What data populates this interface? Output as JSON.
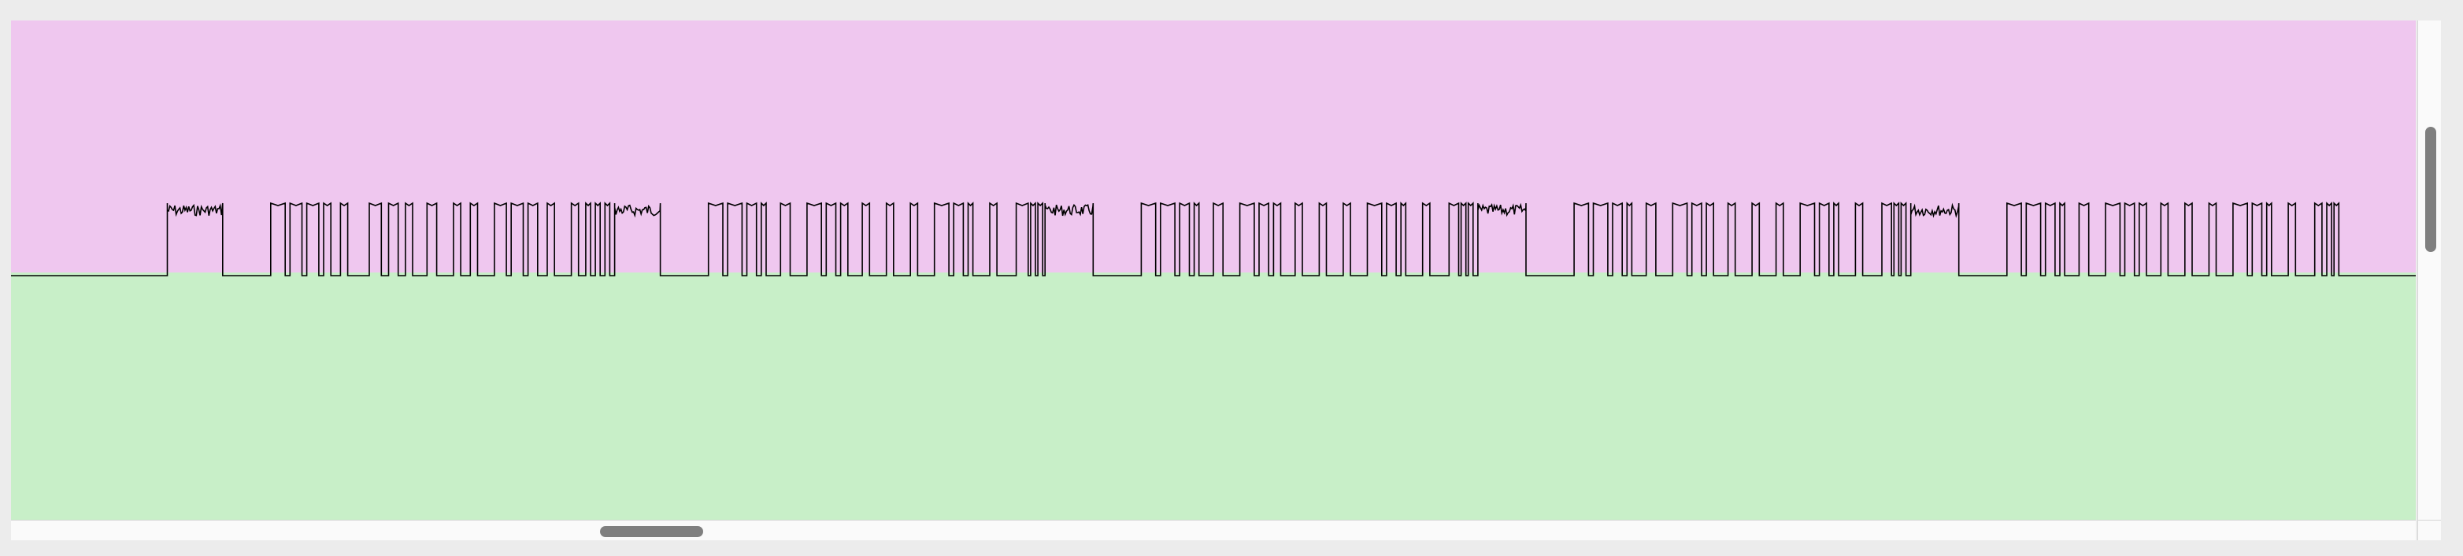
{
  "colors": {
    "window_background": "#ececec",
    "upper_region": "#efc7ef",
    "lower_region": "#c8efc8",
    "signal_trace": "#000000",
    "scrollbar_track": "#fafafa",
    "scrollbar_thumb": "#7f7f7f"
  },
  "signal_view": {
    "selection_threshold_fraction_from_top": 0.505,
    "vertical_scroll_position_fraction": 0.2,
    "vertical_scroll_visible_fraction": 0.25,
    "horizontal_scroll_position_fraction": 0.245,
    "horizontal_scroll_visible_fraction": 0.043
  },
  "chart_data": {
    "type": "line",
    "title": "",
    "xlabel": "",
    "ylabel": "",
    "ylim": [
      0,
      1
    ],
    "grid": false,
    "legend": "none",
    "series": [
      {
        "name": "",
        "description_levels": {
          "low": 0.0,
          "high": 1.0
        },
        "pulses": [
          [
            0.065,
            0.088,
            1
          ],
          [
            0.108,
            0.114,
            0
          ],
          [
            0.116,
            0.121,
            0
          ],
          [
            0.123,
            0.128,
            0
          ],
          [
            0.13,
            0.133,
            0
          ],
          [
            0.137,
            0.14,
            0
          ],
          [
            0.149,
            0.154,
            0
          ],
          [
            0.157,
            0.161,
            0
          ],
          [
            0.164,
            0.167,
            0
          ],
          [
            0.173,
            0.177,
            0
          ],
          [
            0.184,
            0.187,
            0
          ],
          [
            0.191,
            0.194,
            0
          ],
          [
            0.201,
            0.206,
            0
          ],
          [
            0.208,
            0.213,
            0
          ],
          [
            0.215,
            0.219,
            0
          ],
          [
            0.223,
            0.226,
            0
          ],
          [
            0.233,
            0.236,
            0
          ],
          [
            0.239,
            0.241,
            0
          ],
          [
            0.243,
            0.245,
            0
          ],
          [
            0.247,
            0.249,
            0
          ],
          [
            0.251,
            0.27,
            1
          ],
          [
            0.29,
            0.296,
            0
          ],
          [
            0.298,
            0.304,
            0
          ],
          [
            0.306,
            0.31,
            0
          ],
          [
            0.312,
            0.314,
            0
          ],
          [
            0.32,
            0.324,
            0
          ],
          [
            0.331,
            0.337,
            0
          ],
          [
            0.339,
            0.343,
            0
          ],
          [
            0.345,
            0.348,
            0
          ],
          [
            0.354,
            0.357,
            0
          ],
          [
            0.364,
            0.367,
            0
          ],
          [
            0.374,
            0.377,
            0
          ],
          [
            0.384,
            0.39,
            0
          ],
          [
            0.392,
            0.396,
            0
          ],
          [
            0.398,
            0.4,
            0
          ],
          [
            0.407,
            0.41,
            0
          ],
          [
            0.418,
            0.423,
            0
          ],
          [
            0.424,
            0.426,
            0
          ],
          [
            0.427,
            0.429,
            0
          ],
          [
            0.43,
            0.45,
            1
          ],
          [
            0.47,
            0.476,
            0
          ],
          [
            0.478,
            0.484,
            0
          ],
          [
            0.486,
            0.49,
            0
          ],
          [
            0.492,
            0.494,
            0
          ],
          [
            0.5,
            0.504,
            0
          ],
          [
            0.511,
            0.517,
            0
          ],
          [
            0.519,
            0.523,
            0
          ],
          [
            0.525,
            0.528,
            0
          ],
          [
            0.534,
            0.537,
            0
          ],
          [
            0.544,
            0.547,
            0
          ],
          [
            0.554,
            0.557,
            0
          ],
          [
            0.564,
            0.57,
            0
          ],
          [
            0.572,
            0.576,
            0
          ],
          [
            0.578,
            0.58,
            0
          ],
          [
            0.587,
            0.59,
            0
          ],
          [
            0.598,
            0.602,
            0
          ],
          [
            0.603,
            0.605,
            0
          ],
          [
            0.606,
            0.608,
            0
          ],
          [
            0.61,
            0.63,
            1
          ],
          [
            0.65,
            0.656,
            0
          ],
          [
            0.658,
            0.664,
            0
          ],
          [
            0.666,
            0.67,
            0
          ],
          [
            0.672,
            0.674,
            0
          ],
          [
            0.68,
            0.684,
            0
          ],
          [
            0.691,
            0.697,
            0
          ],
          [
            0.699,
            0.703,
            0
          ],
          [
            0.705,
            0.708,
            0
          ],
          [
            0.714,
            0.717,
            0
          ],
          [
            0.724,
            0.727,
            0
          ],
          [
            0.734,
            0.737,
            0
          ],
          [
            0.744,
            0.75,
            0
          ],
          [
            0.752,
            0.756,
            0
          ],
          [
            0.758,
            0.76,
            0
          ],
          [
            0.767,
            0.77,
            0
          ],
          [
            0.778,
            0.782,
            0
          ],
          [
            0.783,
            0.785,
            0
          ],
          [
            0.786,
            0.788,
            0
          ],
          [
            0.79,
            0.81,
            1
          ],
          [
            0.83,
            0.836,
            0
          ],
          [
            0.838,
            0.844,
            0
          ],
          [
            0.846,
            0.85,
            0
          ],
          [
            0.852,
            0.854,
            0
          ],
          [
            0.86,
            0.864,
            0
          ],
          [
            0.871,
            0.877,
            0
          ],
          [
            0.879,
            0.883,
            0
          ],
          [
            0.885,
            0.888,
            0
          ],
          [
            0.894,
            0.897,
            0
          ],
          [
            0.904,
            0.907,
            0
          ],
          [
            0.914,
            0.917,
            0
          ],
          [
            0.924,
            0.93,
            0
          ],
          [
            0.932,
            0.936,
            0
          ],
          [
            0.938,
            0.94,
            0
          ],
          [
            0.947,
            0.95,
            0
          ],
          [
            0.958,
            0.961,
            0
          ],
          [
            0.963,
            0.965,
            0
          ],
          [
            0.966,
            0.968,
            0
          ]
        ]
      }
    ]
  }
}
